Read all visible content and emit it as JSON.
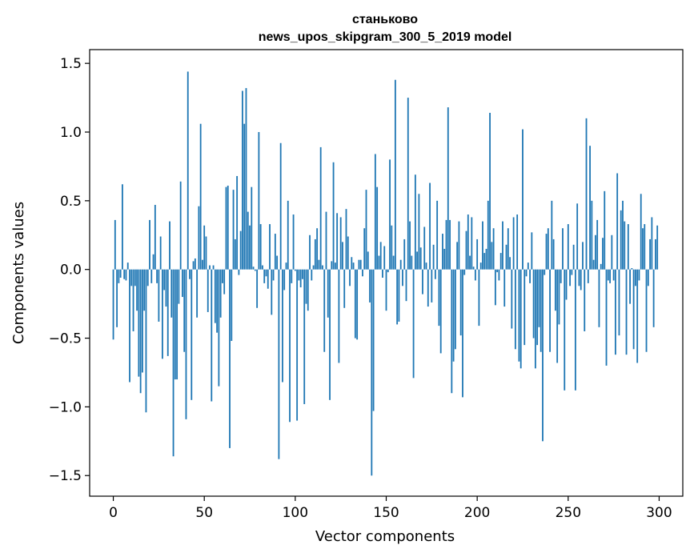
{
  "chart_data": {
    "type": "bar",
    "title": "станьково",
    "subtitle": "news_upos_skipgram_300_5_2019 model",
    "xlabel": "Vector components",
    "ylabel": "Components values",
    "xlim": [
      -13,
      313
    ],
    "ylim": [
      -1.65,
      1.6
    ],
    "xticks": [
      0,
      50,
      100,
      150,
      200,
      250,
      300
    ],
    "xtick_labels": [
      "0",
      "50",
      "100",
      "150",
      "200",
      "250",
      "300"
    ],
    "yticks": [
      1.5,
      1.0,
      0.5,
      0.0,
      -0.5,
      -1.0,
      -1.5
    ],
    "ytick_labels": [
      "1.5",
      "1.0",
      "0.5",
      "0.0",
      "−0.5",
      "−1.0",
      "−1.5"
    ],
    "bar_color": "#1f77b4",
    "grid": false,
    "x": "0..299",
    "values": [
      -0.51,
      0.36,
      -0.42,
      -0.1,
      -0.06,
      0.62,
      -0.07,
      -0.08,
      0.05,
      -0.82,
      -0.12,
      -0.45,
      -0.12,
      -0.3,
      -0.78,
      -0.9,
      -0.75,
      -0.3,
      -1.04,
      -0.12,
      0.36,
      -0.1,
      0.11,
      0.47,
      -0.1,
      -0.38,
      0.24,
      -0.65,
      -0.15,
      -0.27,
      -0.63,
      0.35,
      -0.35,
      -1.36,
      -0.8,
      -0.8,
      -0.25,
      0.64,
      -0.2,
      -0.6,
      -1.09,
      1.44,
      -0.07,
      -0.95,
      0.06,
      0.08,
      -0.35,
      0.46,
      1.06,
      0.07,
      0.32,
      0.24,
      -0.31,
      0.03,
      -0.96,
      0.03,
      -0.39,
      -0.46,
      -0.85,
      -0.35,
      -0.1,
      -0.18,
      0.6,
      0.61,
      -1.3,
      -0.52,
      0.58,
      0.22,
      0.68,
      -0.04,
      0.28,
      1.3,
      1.06,
      1.32,
      0.42,
      0.32,
      0.6,
      0.02,
      -0.01,
      -0.28,
      1.0,
      0.33,
      0.03,
      -0.1,
      -0.05,
      -0.14,
      0.33,
      -0.33,
      -0.08,
      0.26,
      0.1,
      -1.38,
      0.92,
      -0.82,
      -0.15,
      0.05,
      0.5,
      -1.11,
      -0.1,
      0.4,
      -0.01,
      -1.1,
      -0.08,
      -0.13,
      -0.07,
      -0.98,
      -0.25,
      -0.3,
      0.25,
      -0.08,
      0.03,
      0.22,
      0.3,
      0.07,
      0.89,
      0.03,
      -0.6,
      0.42,
      -0.35,
      -0.95,
      0.06,
      0.78,
      0.05,
      0.41,
      -0.68,
      0.38,
      0.2,
      -0.28,
      0.44,
      0.24,
      -0.12,
      0.09,
      0.05,
      -0.5,
      -0.51,
      0.07,
      0.07,
      -0.05,
      0.3,
      0.58,
      0.13,
      -0.24,
      -1.5,
      -1.03,
      0.84,
      0.6,
      0.1,
      0.2,
      -0.06,
      0.17,
      -0.3,
      -0.02,
      0.8,
      0.32,
      0.1,
      1.38,
      -0.4,
      -0.38,
      0.07,
      -0.12,
      0.22,
      -0.23,
      1.25,
      0.35,
      0.1,
      -0.79,
      0.69,
      0.13,
      0.55,
      0.16,
      -0.18,
      0.31,
      0.05,
      -0.27,
      0.63,
      -0.24,
      0.18,
      -0.07,
      0.5,
      -0.41,
      -0.61,
      0.26,
      0.15,
      0.36,
      1.18,
      0.36,
      -0.9,
      -0.67,
      -0.58,
      0.2,
      0.35,
      -0.48,
      -0.93,
      -0.04,
      0.28,
      0.4,
      0.1,
      0.38,
      0.02,
      -0.08,
      0.22,
      -0.41,
      0.05,
      0.35,
      0.12,
      0.15,
      0.5,
      1.14,
      0.2,
      0.3,
      -0.26,
      -0.02,
      -0.08,
      0.12,
      0.35,
      -0.27,
      0.18,
      0.3,
      0.09,
      -0.43,
      0.38,
      -0.58,
      0.4,
      -0.67,
      -0.72,
      1.02,
      -0.55,
      -0.05,
      0.05,
      -0.1,
      0.27,
      -0.5,
      -0.72,
      -0.55,
      -0.42,
      -0.6,
      -1.25,
      -0.04,
      0.26,
      0.3,
      -0.6,
      0.5,
      0.22,
      -0.3,
      -0.68,
      -0.4,
      -0.1,
      0.3,
      -0.88,
      -0.22,
      0.33,
      -0.12,
      -0.04,
      0.18,
      -0.88,
      0.48,
      -0.12,
      -0.15,
      0.2,
      -0.45,
      1.1,
      -0.1,
      0.9,
      0.5,
      0.07,
      0.25,
      0.36,
      -0.42,
      0.04,
      0.23,
      0.57,
      -0.7,
      -0.08,
      -0.1,
      0.25,
      -0.08,
      -0.62,
      0.7,
      -0.48,
      0.43,
      0.5,
      0.35,
      -0.62,
      0.33,
      -0.25,
      0.01,
      -0.58,
      -0.12,
      -0.68,
      -0.08,
      0.55,
      0.3,
      0.33,
      -0.6,
      -0.12,
      0.22,
      0.38,
      -0.42,
      0.22,
      0.32
    ]
  }
}
